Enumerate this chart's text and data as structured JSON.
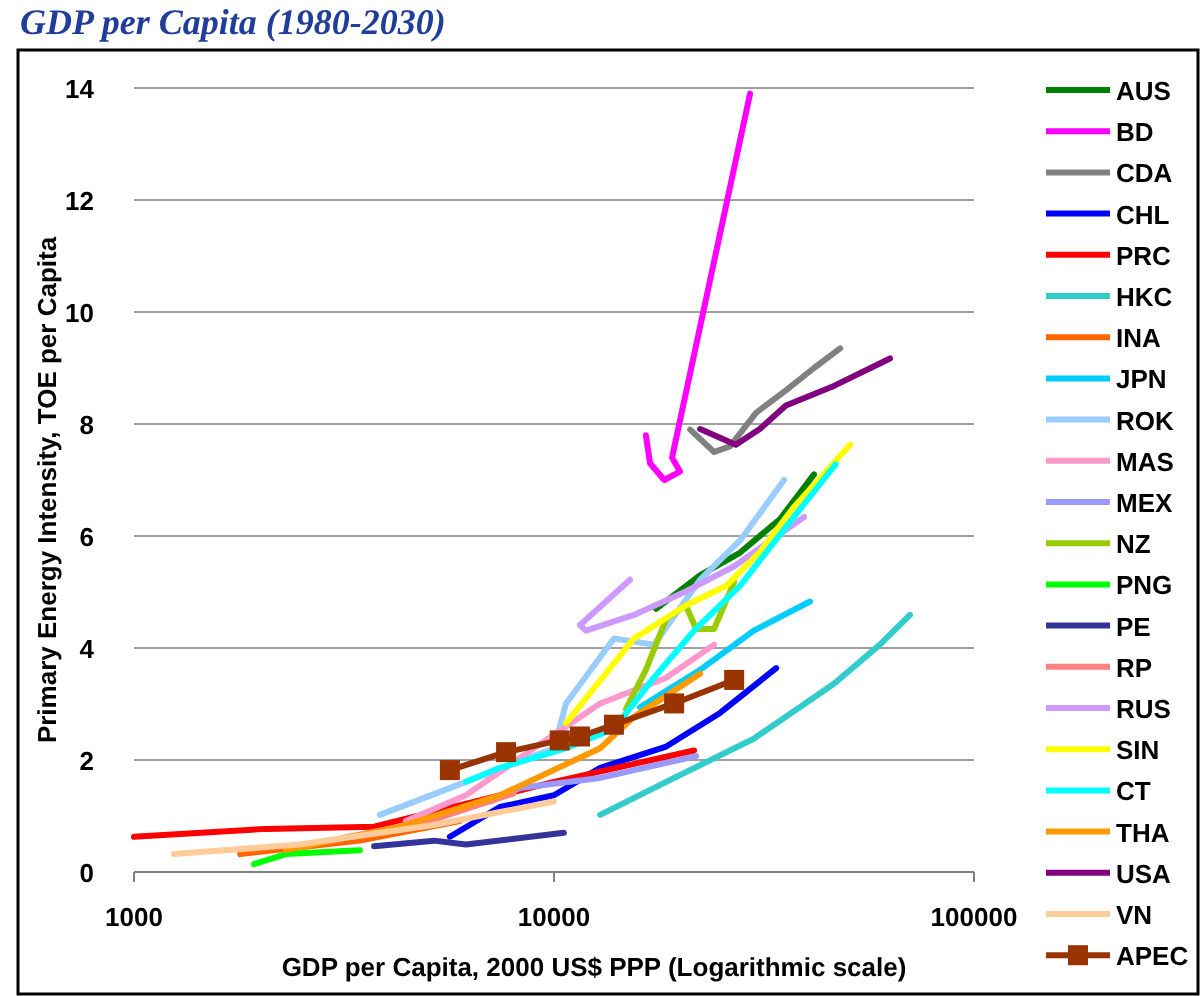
{
  "chart_data": {
    "type": "line",
    "title": "GDP per Capita (1980-2030)",
    "xlabel": "GDP per Capita, 2000 US$ PPP (Logarithmic scale)",
    "ylabel": "Primary Energy Intensity, TOE per Capita",
    "log": "x",
    "xlim": [
      1000,
      100000
    ],
    "xticks": [
      1000,
      10000,
      100000
    ],
    "ylim": [
      0,
      14
    ],
    "yticks": [
      0,
      2,
      4,
      6,
      8,
      10,
      12,
      14
    ],
    "grid": "y",
    "legend": "right",
    "marker": "none",
    "line_style": "solid",
    "series": [
      {
        "name": "AUS",
        "color": "#008000",
        "x": [
          17500,
          22300,
          27700,
          34500,
          41600
        ],
        "values": [
          4.7,
          5.3,
          5.7,
          6.3,
          7.1
        ]
      },
      {
        "name": "BD",
        "color": "#ff00ff",
        "x": [
          16550,
          16930,
          18300,
          19950,
          19100,
          29300
        ],
        "values": [
          7.8,
          7.3,
          7.0,
          7.15,
          7.4,
          13.9
        ]
      },
      {
        "name": "CDA",
        "color": "#808080",
        "x": [
          21100,
          24050,
          26240,
          30270,
          35660,
          41600,
          48000
        ],
        "values": [
          7.9,
          7.5,
          7.6,
          8.2,
          8.6,
          9.0,
          9.35
        ]
      },
      {
        "name": "CHL",
        "color": "#0000ff",
        "x": [
          5650,
          7430,
          10000,
          12880,
          18500,
          24850,
          33800
        ],
        "values": [
          0.63,
          1.16,
          1.37,
          1.86,
          2.24,
          2.84,
          3.64
        ]
      },
      {
        "name": "PRC",
        "color": "#ff0000",
        "x": [
          1000,
          2060,
          3730,
          10000,
          21550
        ],
        "values": [
          0.63,
          0.77,
          0.81,
          1.61,
          2.17
        ]
      },
      {
        "name": "HKC",
        "color": "#33cccc",
        "x": [
          12880,
          18500,
          29900,
          46400,
          59700,
          70400
        ],
        "values": [
          1.02,
          1.61,
          2.38,
          3.36,
          4.06,
          4.59
        ]
      },
      {
        "name": "INA",
        "color": "#ff6600",
        "x": [
          1790,
          3450,
          5970
        ],
        "values": [
          0.32,
          0.56,
          0.91
        ]
      },
      {
        "name": "JPN",
        "color": "#00ccff",
        "x": [
          16030,
          22280,
          29900,
          40700
        ],
        "values": [
          2.94,
          3.61,
          4.31,
          4.83
        ]
      },
      {
        "name": "ROK",
        "color": "#99ccff",
        "x": [
          3850,
          6170,
          10000,
          10680,
          13890,
          17300,
          22280,
          27730,
          35300
        ],
        "values": [
          1.02,
          1.61,
          2.21,
          3.01,
          4.17,
          4.06,
          5.22,
          5.92,
          7.0
        ]
      },
      {
        "name": "MAS",
        "color": "#ff99cc",
        "x": [
          4440,
          6170,
          8960,
          12880,
          18500,
          24050
        ],
        "values": [
          0.91,
          1.37,
          2.21,
          3.01,
          3.47,
          4.06
        ]
      },
      {
        "name": "MEX",
        "color": "#9999ff",
        "x": [
          7050,
          8300,
          12880,
          21800
        ],
        "values": [
          1.26,
          1.5,
          1.68,
          2.07
        ]
      },
      {
        "name": "NZ",
        "color": "#99cc00",
        "x": [
          14830,
          16550,
          18500,
          20600,
          21800,
          24050,
          26850
        ],
        "values": [
          2.91,
          3.61,
          4.52,
          4.76,
          4.34,
          4.34,
          5.18
        ]
      },
      {
        "name": "PNG",
        "color": "#00ff00",
        "x": [
          1930,
          2300,
          3450
        ],
        "values": [
          0.14,
          0.32,
          0.39
        ]
      },
      {
        "name": "PE",
        "color": "#333399",
        "x": [
          3730,
          5180,
          6170,
          10560
        ],
        "values": [
          0.46,
          0.56,
          0.49,
          0.7
        ]
      },
      {
        "name": "RP",
        "color": "#ff8080",
        "x": [
          3100,
          5000,
          8000
        ],
        "values": [
          0.6,
          0.9,
          1.4
        ]
      },
      {
        "name": "RUS",
        "color": "#cc99ff",
        "x": [
          15170,
          11530,
          11910,
          15500,
          20600,
          26850,
          39400
        ],
        "values": [
          5.22,
          4.41,
          4.31,
          4.59,
          5.01,
          5.46,
          6.34
        ]
      },
      {
        "name": "SIN",
        "color": "#ffff00",
        "x": [
          10680,
          15500,
          20600,
          25700,
          30900,
          37200,
          50700
        ],
        "values": [
          2.66,
          4.17,
          4.76,
          5.11,
          5.71,
          6.51,
          7.63
        ]
      },
      {
        "name": "CT",
        "color": "#00ffff",
        "x": [
          6170,
          7430,
          10680,
          13890,
          17300,
          21550,
          27730,
          35660,
          46800
        ],
        "values": [
          1.61,
          1.86,
          2.21,
          2.56,
          3.47,
          4.31,
          5.11,
          6.16,
          7.28
        ]
      },
      {
        "name": "THA",
        "color": "#ff9900",
        "x": [
          2300,
          4300,
          7430,
          12880,
          15500,
          22280
        ],
        "values": [
          0.39,
          0.81,
          1.37,
          2.21,
          2.77,
          3.54
        ]
      },
      {
        "name": "USA",
        "color": "#800080",
        "x": [
          22280,
          27100,
          30900,
          35660,
          46400,
          63100
        ],
        "values": [
          7.91,
          7.63,
          7.91,
          8.33,
          8.68,
          9.17
        ]
      },
      {
        "name": "VN",
        "color": "#ffcc99",
        "x": [
          1245,
          2480,
          5180,
          10000
        ],
        "values": [
          0.32,
          0.49,
          0.84,
          1.26
        ]
      },
      {
        "name": "APEC",
        "color": "#993300",
        "marker": "square",
        "x": [
          5650,
          7690,
          10320,
          11530,
          13890,
          19320,
          26850
        ],
        "values": [
          1.82,
          2.14,
          2.35,
          2.42,
          2.63,
          3.01,
          3.43
        ]
      }
    ]
  }
}
